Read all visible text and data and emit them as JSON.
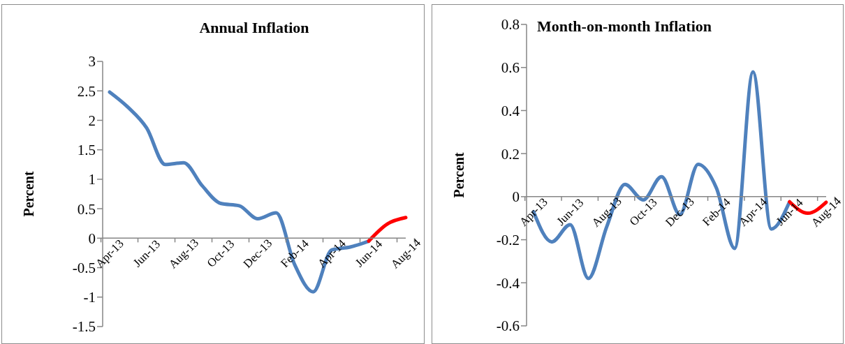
{
  "chart_data": [
    {
      "type": "line",
      "title": "Annual Inflation",
      "ylabel": "Percent",
      "categories": [
        "Apr-13",
        null,
        "Jun-13",
        null,
        "Aug-13",
        null,
        "Oct-13",
        null,
        "Dec-13",
        null,
        "Feb-14",
        null,
        "Apr-14",
        null,
        "Jun-14",
        null,
        "Aug-14"
      ],
      "series": [
        {
          "color": "#4f81bd",
          "values": [
            2.48,
            2.22,
            1.87,
            1.25,
            1.28,
            0.89,
            0.59,
            0.55,
            0.33,
            0.43,
            -0.45,
            -0.91,
            -0.2,
            -0.15,
            -0.05,
            null,
            null
          ]
        },
        {
          "color": "#ff0000",
          "values": [
            null,
            null,
            null,
            null,
            null,
            null,
            null,
            null,
            null,
            null,
            null,
            null,
            null,
            null,
            -0.05,
            0.24,
            0.35
          ]
        }
      ],
      "ylim": [
        -1.5,
        3
      ],
      "yticks": [
        -1.5,
        -1,
        -0.5,
        0,
        0.5,
        1,
        1.5,
        2,
        2.5,
        3
      ]
    },
    {
      "type": "line",
      "title": "Month-on-month Inflation",
      "ylabel": "Percent",
      "categories": [
        "Apr-13",
        null,
        "Jun-13",
        null,
        "Aug-13",
        null,
        "Oct-13",
        null,
        "Dec-13",
        null,
        "Feb-14",
        null,
        "Apr-14",
        null,
        "Jun-14",
        null,
        "Aug-14"
      ],
      "series": [
        {
          "color": "#4f81bd",
          "values": [
            -0.07,
            -0.21,
            -0.13,
            -0.38,
            -0.14,
            0.057,
            -0.015,
            0.093,
            -0.083,
            0.15,
            0.04,
            -0.24,
            0.58,
            -0.15,
            -0.024,
            null,
            null
          ]
        },
        {
          "color": "#ff0000",
          "values": [
            null,
            null,
            null,
            null,
            null,
            null,
            null,
            null,
            null,
            null,
            null,
            null,
            null,
            null,
            -0.024,
            -0.077,
            -0.026
          ]
        }
      ],
      "ylim": [
        -0.6,
        0.8
      ],
      "yticks": [
        -0.6,
        -0.4,
        -0.2,
        0,
        0.2,
        0.4,
        0.6,
        0.8
      ]
    }
  ]
}
